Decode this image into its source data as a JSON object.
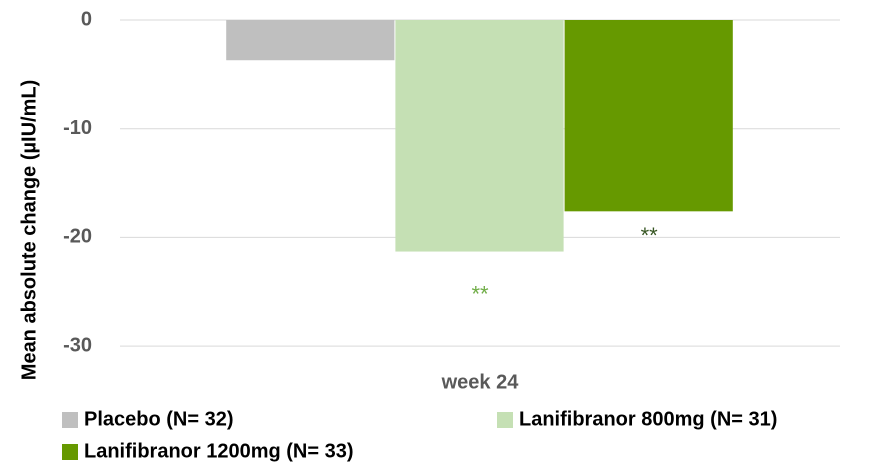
{
  "chart_data": {
    "type": "bar",
    "y_label": "Mean absolute change (µIU/mL)",
    "categories": [
      "week 24"
    ],
    "series": [
      {
        "name": "Placebo (N= 32)",
        "color": "#bfbfbf",
        "values": [
          -3.7
        ]
      },
      {
        "name": "Lanifibranor 800mg (N= 31)",
        "color": "#c5e0b4",
        "values": [
          -21.3
        ],
        "annotation": "**",
        "annotation_color": "#70ad47"
      },
      {
        "name": "Lanifibranor 1200mg (N= 33)",
        "color": "#669900",
        "values": [
          -17.6
        ],
        "annotation": "**",
        "annotation_color": "#375623"
      }
    ],
    "ylim": [
      -31,
      0
    ],
    "yticks": [
      -30,
      -20,
      -10,
      0
    ],
    "grid": true,
    "legend": "bottom"
  }
}
